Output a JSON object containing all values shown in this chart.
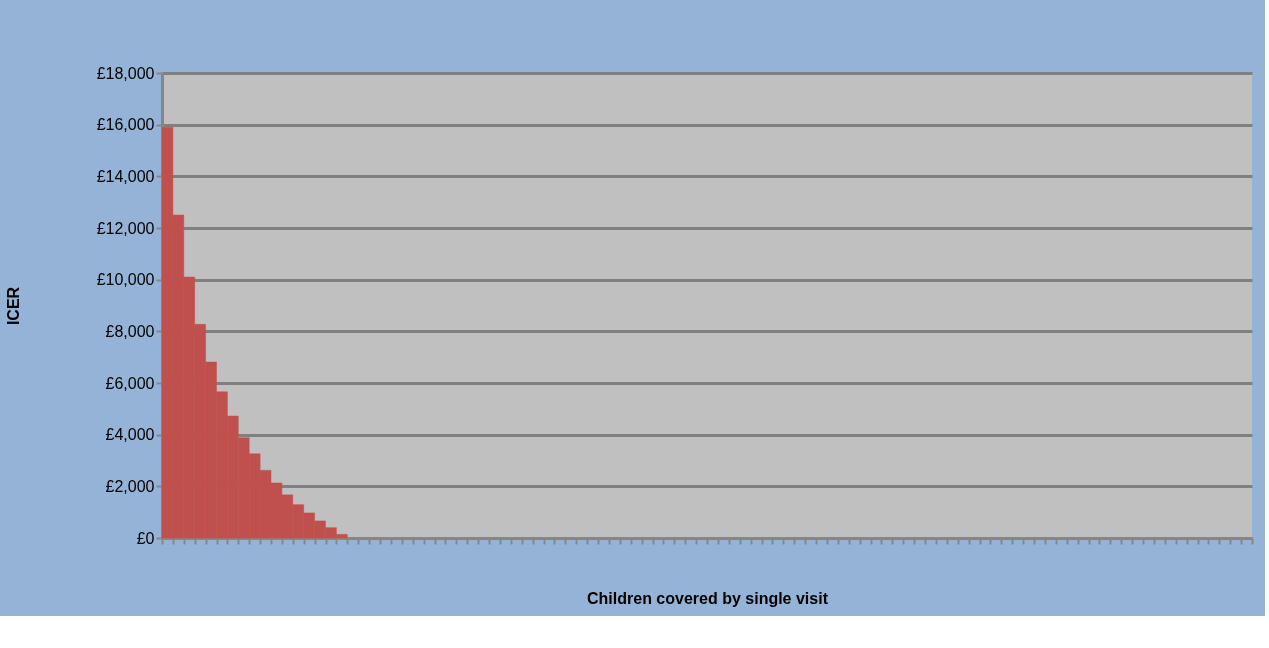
{
  "chart_data": {
    "type": "bar",
    "xlabel": "Children covered by single visit",
    "ylabel": "ICER",
    "categories": [
      null,
      null,
      null,
      null,
      null,
      null,
      null,
      null,
      null,
      null,
      null,
      null,
      null,
      null,
      null,
      null,
      null,
      null,
      null,
      null,
      null,
      null,
      null,
      null,
      null,
      null,
      null,
      null,
      null,
      null,
      null,
      null,
      null,
      null,
      null,
      null,
      null,
      null,
      null,
      null,
      null,
      null,
      null,
      null,
      null,
      null,
      null,
      null,
      null,
      null,
      null,
      null,
      null,
      null,
      null,
      null,
      null,
      null,
      null,
      null,
      null,
      null,
      null,
      null,
      null,
      null,
      null,
      null,
      null,
      null,
      null,
      null,
      null,
      null,
      null,
      null,
      null,
      null,
      null,
      null,
      null,
      null,
      null,
      null,
      null,
      null,
      null,
      null,
      null,
      null,
      null,
      null,
      null,
      null,
      null,
      null,
      null,
      null,
      null,
      null
    ],
    "values": [
      15900,
      12500,
      10100,
      8270,
      6810,
      5660,
      4720,
      3880,
      3260,
      2620,
      2130,
      1670,
      1290,
      970,
      660,
      400,
      140,
      null,
      null,
      null,
      null,
      null,
      null,
      null,
      null,
      null,
      null,
      null,
      null,
      null,
      null,
      null,
      null,
      null,
      null,
      null,
      null,
      null,
      null,
      null,
      null,
      null,
      null,
      null,
      null,
      null,
      null,
      null,
      null,
      null,
      null,
      null,
      null,
      null,
      null,
      null,
      null,
      null,
      null,
      null,
      null,
      null,
      null,
      null,
      null,
      null,
      null,
      null,
      null,
      null,
      null,
      null,
      null,
      null,
      null,
      null,
      null,
      null,
      null,
      null,
      null,
      null,
      null,
      null,
      null,
      null,
      null,
      null,
      null,
      null,
      null,
      null,
      null,
      null,
      null,
      null,
      null,
      null,
      null,
      null
    ],
    "color": "#c0504d",
    "ylim": [
      0,
      18000
    ],
    "yticks": [
      {
        "value": 0,
        "label": "£0"
      },
      {
        "value": 2000,
        "label": "£2,000"
      },
      {
        "value": 4000,
        "label": "£4,000"
      },
      {
        "value": 6000,
        "label": "£6,000"
      },
      {
        "value": 8000,
        "label": "£8,000"
      },
      {
        "value": 10000,
        "label": "£10,000"
      },
      {
        "value": 12000,
        "label": "£12,000"
      },
      {
        "value": 14000,
        "label": "£14,000"
      },
      {
        "value": 16000,
        "label": "£16,000"
      },
      {
        "value": 18000,
        "label": "£18,000"
      }
    ],
    "tick_labels": "y",
    "grid": "y"
  }
}
